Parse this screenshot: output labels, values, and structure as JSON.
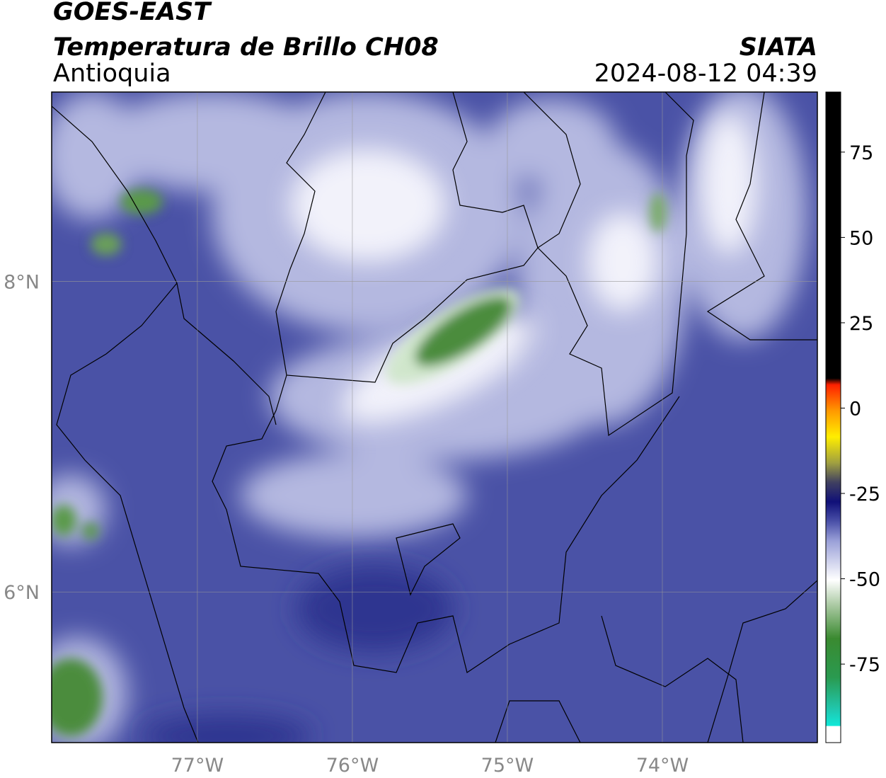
{
  "header": {
    "network": "GOES-EAST",
    "title": "Temperatura de Brillo CH08",
    "region": "Antioquia",
    "source": "SIATA",
    "datetime": "2024-08-12 04:39"
  },
  "map": {
    "xlim": [
      -77.94,
      -73.0
    ],
    "ylim": [
      5.03,
      9.22
    ],
    "xticks": [
      {
        "value": -77,
        "label": "77°W"
      },
      {
        "value": -76,
        "label": "76°W"
      },
      {
        "value": -75,
        "label": "75°W"
      },
      {
        "value": -74,
        "label": "74°W"
      }
    ],
    "yticks": [
      {
        "value": 6,
        "label": "6°N"
      },
      {
        "value": 8,
        "label": "8°N"
      }
    ]
  },
  "colorbar": {
    "lim": [
      -98,
      92.6
    ],
    "ticks": [
      -75,
      -50,
      -25,
      0,
      25,
      50,
      75
    ]
  }
}
